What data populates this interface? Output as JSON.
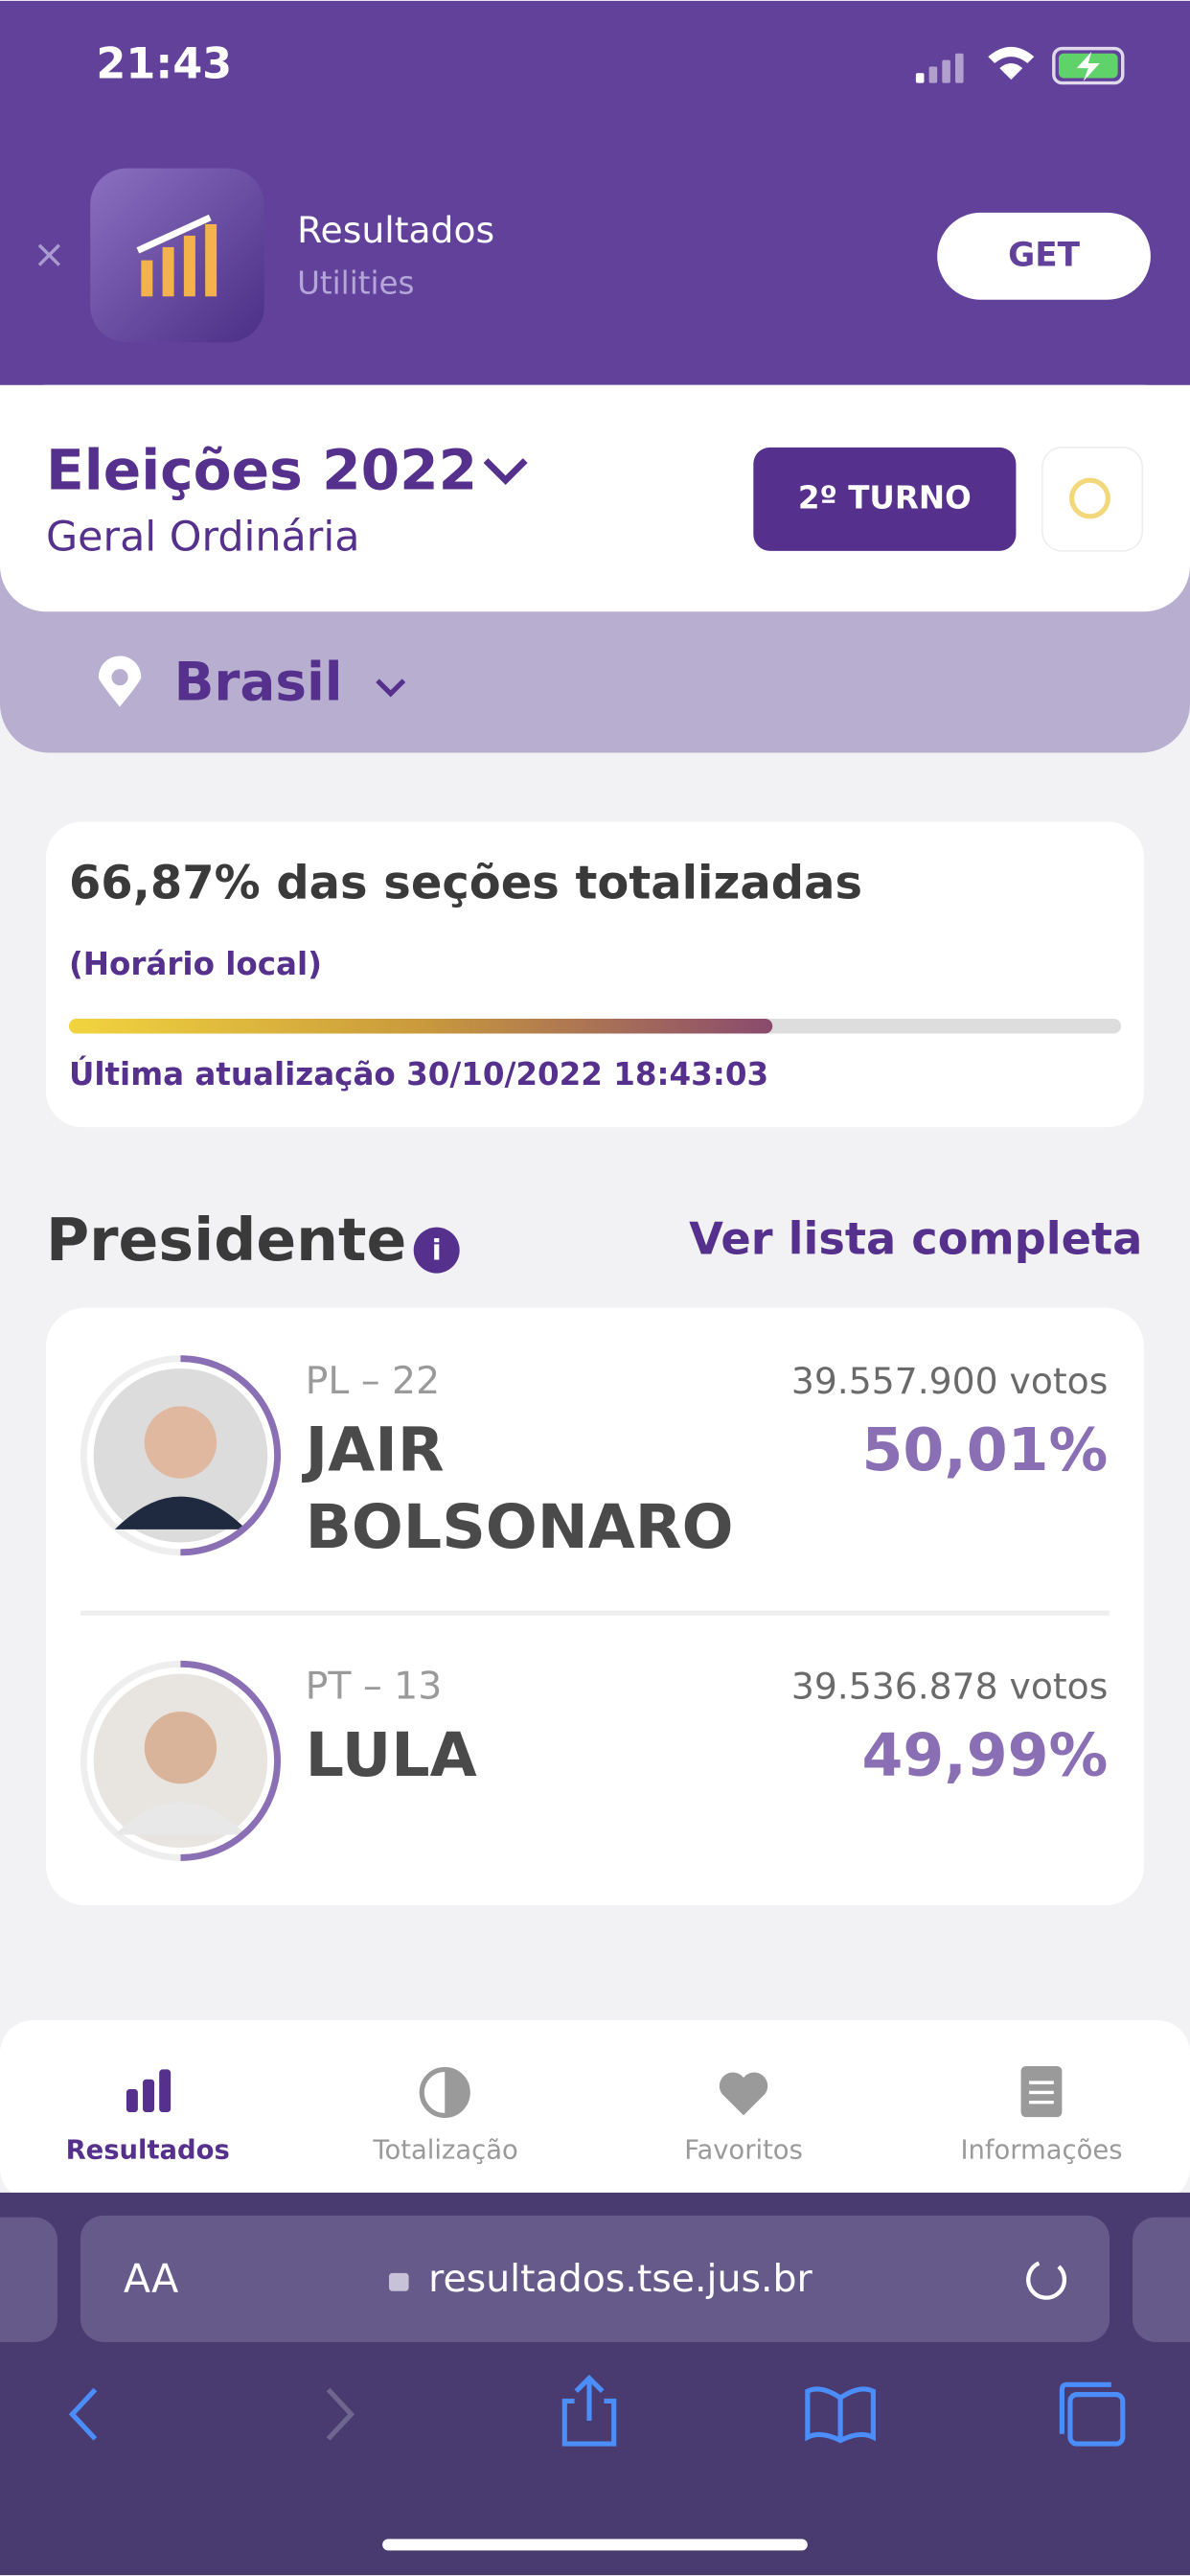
{
  "status_bar": {
    "time": "21:43"
  },
  "app_banner": {
    "name": "Resultados",
    "category": "Utilities",
    "button": "GET"
  },
  "header": {
    "title": "Eleições 2022",
    "subtitle": "Geral Ordinária",
    "round_button": "2º TURNO",
    "location": "Brasil"
  },
  "progress": {
    "sections": {
      "value": 66.87,
      "label": "66,87% das seções totalizadas"
    },
    "note": "(Horário local)",
    "updated": "Última atualização 30/10/2022 18:43:03"
  },
  "section": {
    "title": "Presidente",
    "link": "Ver lista completa"
  },
  "candidates": [
    {
      "party": "PL – 22",
      "name_lines": [
        "JAIR",
        "BOLSONARO"
      ],
      "votes": "39.557.900 votos",
      "percent": {
        "value": 50.01,
        "label": "50,01%"
      }
    },
    {
      "party": "PT – 13",
      "name_lines": [
        "LULA"
      ],
      "votes": "39.536.878 votos",
      "percent": {
        "value": 49.99,
        "label": "49,99%"
      }
    }
  ],
  "tabs": [
    "Resultados",
    "Totalização",
    "Favoritos",
    "Informações"
  ],
  "browser": {
    "text_size": "AA",
    "url": "resultados.tse.jus.br"
  }
}
